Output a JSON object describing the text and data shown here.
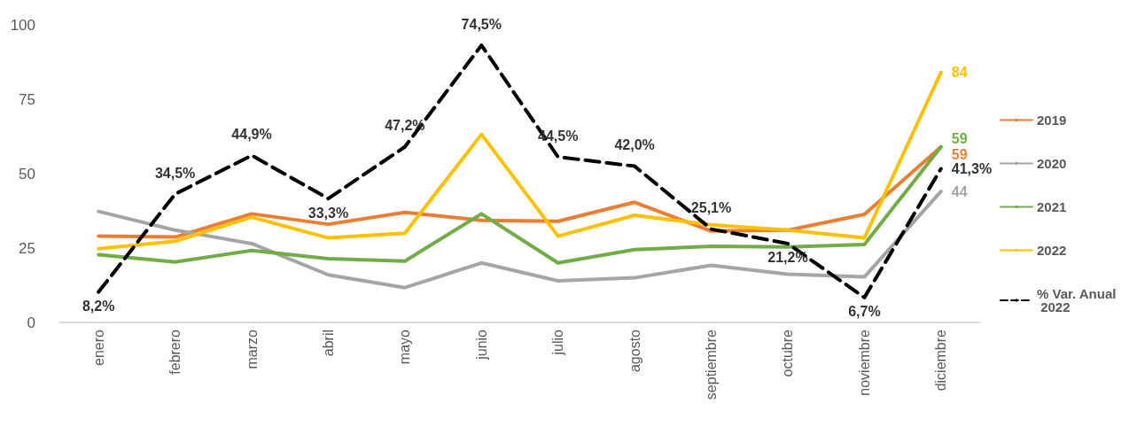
{
  "chart_data": {
    "type": "line",
    "categories": [
      "enero",
      "febrero",
      "marzo",
      "abril",
      "mayo",
      "junio",
      "julio",
      "agosto",
      "septiembre",
      "octubre",
      "noviembre",
      "diciembre"
    ],
    "series": [
      {
        "name": "2019",
        "color": "#ed7d31",
        "values": [
          29,
          28.7,
          36.5,
          33,
          37,
          34.3,
          34,
          40.4,
          30.7,
          31,
          36.3,
          59
        ],
        "value_labels": [
          null,
          null,
          null,
          null,
          null,
          null,
          null,
          null,
          null,
          null,
          null,
          "59"
        ]
      },
      {
        "name": "2020",
        "color": "#a5a5a5",
        "values": [
          37.3,
          31,
          26.5,
          16,
          11.7,
          20,
          14,
          15,
          19.2,
          16.2,
          15.3,
          44
        ],
        "value_labels": [
          null,
          null,
          null,
          null,
          null,
          null,
          null,
          null,
          null,
          null,
          null,
          "44"
        ]
      },
      {
        "name": "2021",
        "color": "#70ad47",
        "values": [
          22.8,
          20.3,
          24.2,
          21.4,
          20.6,
          36.5,
          20,
          24.5,
          25.6,
          25.4,
          26.2,
          59
        ],
        "value_labels": [
          null,
          null,
          null,
          null,
          null,
          null,
          null,
          null,
          null,
          null,
          null,
          "59"
        ]
      },
      {
        "name": "2022",
        "color": "#ffc000",
        "values": [
          24.8,
          27.3,
          35.4,
          28.4,
          30,
          63.2,
          29,
          36,
          32.8,
          31,
          28.4,
          84
        ],
        "value_labels": [
          null,
          null,
          null,
          null,
          null,
          null,
          null,
          null,
          null,
          null,
          null,
          "84"
        ]
      },
      {
        "name": "% Var. Anual 2022",
        "color": "#000000",
        "axis": "y2",
        "line_style": "dashed",
        "values": [
          8.2,
          34.5,
          44.9,
          33.3,
          47.2,
          74.5,
          44.5,
          42.0,
          25.1,
          21.2,
          6.7,
          41.3
        ],
        "value_labels": [
          "8,2%",
          "34,5%",
          "44,9%",
          "33,3%",
          "47,2%",
          "74,5%",
          "44,5%",
          "42,0%",
          "25,1%",
          "21,2%",
          "6,7%",
          "41,3%"
        ]
      }
    ],
    "ylim": [
      0,
      100
    ],
    "yticks": [
      0,
      25,
      50,
      75,
      100
    ],
    "grid": false,
    "legend": "right",
    "marker": "none"
  }
}
